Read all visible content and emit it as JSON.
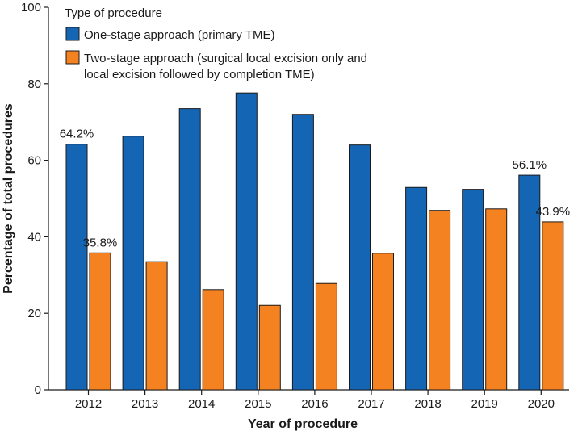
{
  "chart_data": {
    "type": "bar",
    "xlabel": "Year of procedure",
    "ylabel": "Percentage of total procedures",
    "ylim": [
      0,
      100
    ],
    "yticks": [
      0,
      20,
      40,
      60,
      80,
      100
    ],
    "categories": [
      "2012",
      "2013",
      "2014",
      "2015",
      "2016",
      "2017",
      "2018",
      "2019",
      "2020"
    ],
    "legend": {
      "title": "Type of procedure",
      "position": "top-left"
    },
    "series": [
      {
        "name": "One-stage approach (primary TME)",
        "color": "#1565b5",
        "values": [
          64.2,
          66.3,
          73.5,
          77.6,
          72.0,
          64.0,
          52.9,
          52.4,
          56.1
        ]
      },
      {
        "name_lines": [
          "Two-stage approach (surgical local excision only and",
          "local excision followed by completion TME)"
        ],
        "color": "#f58220",
        "values": [
          35.8,
          33.5,
          26.2,
          22.1,
          27.8,
          35.7,
          46.9,
          47.3,
          43.9
        ]
      }
    ],
    "annotations": [
      {
        "series": 0,
        "index": 0,
        "text": "64.2%"
      },
      {
        "series": 1,
        "index": 0,
        "text": "35.8%"
      },
      {
        "series": 0,
        "index": 8,
        "text": "56.1%"
      },
      {
        "series": 1,
        "index": 8,
        "text": "43.9%"
      }
    ]
  }
}
